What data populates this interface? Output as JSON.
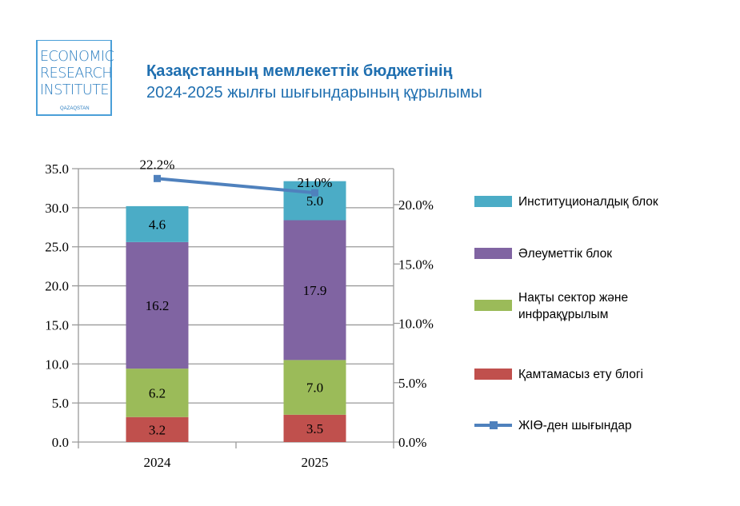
{
  "logo": {
    "lines": [
      "ECONOMIC",
      "RESEARCH",
      "INSTITUTE"
    ],
    "sub": "QAZAQSTAN"
  },
  "title": {
    "line1": "Қазақстанның мемлекеттік бюджетінің",
    "line2": "2024-2025 жылғы шығындарының құрылымы"
  },
  "chart_data": {
    "type": "bar",
    "stacked": true,
    "categories": [
      "2024",
      "2025"
    ],
    "series": [
      {
        "name": "Қамтамасыз ету блогі",
        "values": [
          3.2,
          3.5
        ],
        "color": "#c0504d"
      },
      {
        "name": "Нақты сектор және инфрақұрылым",
        "values": [
          6.2,
          7.0
        ],
        "color": "#9bbb59"
      },
      {
        "name": "Әлеуметтік блок",
        "values": [
          16.2,
          17.9
        ],
        "color": "#8064a2"
      },
      {
        "name": "Институционалдық блок",
        "values": [
          4.6,
          5.0
        ],
        "color": "#4bacc6"
      }
    ],
    "line_series": {
      "name": "ЖІӨ-ден шығындар",
      "values": [
        22.2,
        21.0
      ],
      "labels": [
        "22.2%",
        "21.0%"
      ],
      "color": "#4f81bd",
      "axis": "right"
    },
    "ylim": [
      0,
      35
    ],
    "yticks": [
      "0.0",
      "5.0",
      "10.0",
      "15.0",
      "20.0",
      "25.0",
      "30.0",
      "35.0"
    ],
    "y2lim": [
      0,
      23.57
    ],
    "y2ticks": [
      "0.0%",
      "5.0%",
      "10.0%",
      "15.0%",
      "20.0%"
    ],
    "grid": true,
    "legend_position": "right",
    "legend": [
      "Институционалдық блок",
      "Әлеуметтік блок",
      "Нақты сектор және инфрақұрылым",
      "Қамтамасыз ету блогі",
      "ЖІӨ-ден шығындар"
    ]
  }
}
